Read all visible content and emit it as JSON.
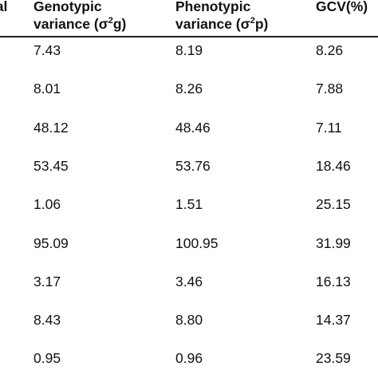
{
  "table": {
    "headers": [
      {
        "lines": [
          {
            "pre": "ral",
            "sup": "",
            "post": ""
          }
        ]
      },
      {
        "lines": [
          {
            "pre": "Genotypic",
            "sup": "",
            "post": ""
          },
          {
            "pre": "variance (σ",
            "sup": "2",
            "post": "g)"
          }
        ]
      },
      {
        "lines": [
          {
            "pre": "Phenotypic",
            "sup": "",
            "post": ""
          },
          {
            "pre": "variance (σ",
            "sup": "2",
            "post": "p)"
          }
        ]
      },
      {
        "lines": [
          {
            "pre": "GCV(%)",
            "sup": "",
            "post": ""
          }
        ]
      }
    ],
    "rows": [
      [
        "7.43",
        "8.19",
        "8.26"
      ],
      [
        "8.01",
        "8.26",
        "7.88"
      ],
      [
        "48.12",
        "48.46",
        "7.11"
      ],
      [
        "53.45",
        "53.76",
        "18.46"
      ],
      [
        "1.06",
        "1.51",
        "25.15"
      ],
      [
        "95.09",
        "100.95",
        "31.99"
      ],
      [
        "3.17",
        "3.46",
        "16.13"
      ],
      [
        "8.43",
        "8.80",
        "14.37"
      ],
      [
        "0.95",
        "0.96",
        "23.59"
      ]
    ]
  }
}
